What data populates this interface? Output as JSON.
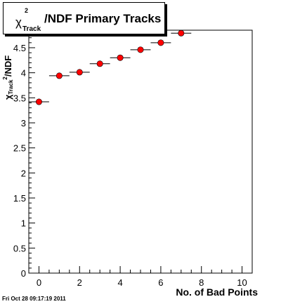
{
  "title": {
    "symbol": "χ",
    "superscript": "2",
    "subscript": "Track",
    "text": "/NDF Primary Tracks"
  },
  "xlabel": "No. of Bad Points",
  "ylabel": {
    "symbol": "χ",
    "superscript": "2",
    "subscript": "Track",
    "text": "/NDF"
  },
  "timestamp": "Fri Oct 28 09:17:19 2011",
  "chart_data": {
    "type": "scatter",
    "x_ticks": [
      "0",
      "2",
      "4",
      "6",
      "8",
      "10"
    ],
    "y_ticks": [
      "0",
      "0.5",
      "1",
      "1.5",
      "2",
      "2.5",
      "3",
      "3.5",
      "4",
      "4.5"
    ],
    "xlim": [
      -0.5,
      10.5
    ],
    "ylim": [
      0,
      4.85
    ],
    "x": [
      0,
      1,
      2,
      3,
      4,
      5,
      6,
      7
    ],
    "y": [
      3.42,
      3.94,
      4.01,
      4.18,
      4.3,
      4.46,
      4.6,
      4.79
    ],
    "x_bin_half_width": 0.5,
    "marker_color": "#ff0000"
  }
}
